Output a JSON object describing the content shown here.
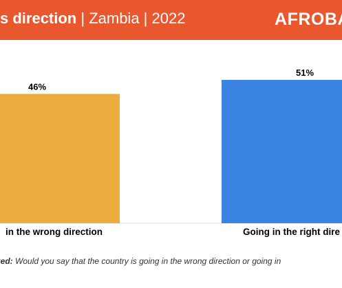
{
  "header": {
    "title_bold": "s direction",
    "title_rest": " | Zambia | 2022",
    "brand": "AFROBA",
    "background_color": "#e8572e"
  },
  "chart_data": {
    "type": "bar",
    "categories": [
      "in the wrong direction",
      "Going in the right dire"
    ],
    "values": [
      46,
      51
    ],
    "value_labels": [
      "46%",
      "51%"
    ],
    "colors": [
      "#ecad3f",
      "#3a83e0"
    ],
    "ylim": [
      0,
      100
    ],
    "title": "",
    "xlabel": "",
    "ylabel": ""
  },
  "footnote": {
    "prefix": "ked:",
    "text": " Would you say that the country is going in the wrong direction or going in"
  }
}
